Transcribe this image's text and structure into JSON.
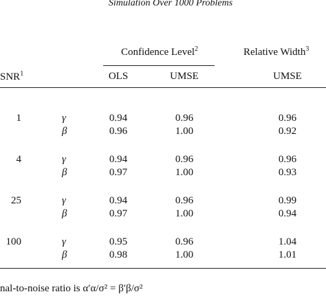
{
  "table": {
    "title": "Simulation Over 1000 Problems",
    "groups": [
      {
        "text": "Confidence Level",
        "note": "2"
      },
      {
        "text": "Relative Width",
        "note": "3"
      }
    ],
    "columns": [
      {
        "text": "SNR",
        "note": "1"
      },
      "OLS",
      "UMSE",
      "UMSE"
    ],
    "rows": [
      {
        "snr": "1",
        "lines": [
          [
            "γ",
            "0.94",
            "0.96",
            "0.96"
          ],
          [
            "β",
            "0.96",
            "1.00",
            "0.92"
          ]
        ]
      },
      {
        "snr": "4",
        "lines": [
          [
            "γ",
            "0.94",
            "0.96",
            "0.96"
          ],
          [
            "β",
            "0.97",
            "1.00",
            "0.93"
          ]
        ]
      },
      {
        "snr": "25",
        "lines": [
          [
            "γ",
            "0.94",
            "0.96",
            "0.99"
          ],
          [
            "β",
            "0.97",
            "1.00",
            "0.94"
          ]
        ]
      },
      {
        "snr": "100",
        "lines": [
          [
            "γ",
            "0.95",
            "0.96",
            "1.04"
          ],
          [
            "β",
            "0.98",
            "1.00",
            "1.01"
          ]
        ]
      }
    ],
    "footnote": "nal-to-noise ratio is α′α/σ² = β′β/σ²"
  }
}
